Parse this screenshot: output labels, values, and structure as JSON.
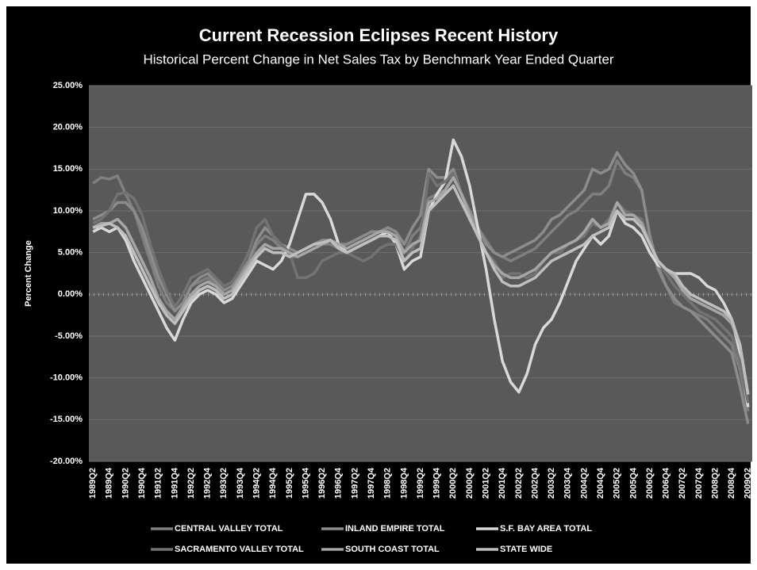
{
  "chart_data": {
    "type": "line",
    "title": "Current Recession Eclipses Recent History",
    "subtitle": "Historical Percent Change in Net Sales Tax by Benchmark Year Ended Quarter",
    "y_label": "Percent Change",
    "categories": [
      "1989Q2",
      null,
      "1989Q4",
      null,
      "1990Q2",
      null,
      "1990Q4",
      null,
      "1991Q2",
      null,
      "1991Q4",
      null,
      "1992Q2",
      null,
      "1992Q4",
      null,
      "1993Q2",
      null,
      "1993Q4",
      null,
      "1994Q2",
      null,
      "1994Q4",
      null,
      "1995Q2",
      null,
      "1995Q4",
      null,
      "1996Q2",
      null,
      "1996Q4",
      null,
      "1997Q2",
      null,
      "1997Q4",
      null,
      "1998Q2",
      null,
      "1998Q4",
      null,
      "1999Q2",
      null,
      "1999Q4",
      null,
      "2000Q2",
      null,
      "2000Q4",
      null,
      "2001Q2",
      null,
      "2001Q4",
      null,
      "2002Q2",
      null,
      "2002Q4",
      null,
      "2003Q2",
      null,
      "2003Q4",
      null,
      "2004Q2",
      null,
      "2004Q4",
      null,
      "2005Q2",
      null,
      "2005Q4",
      null,
      "2006Q2",
      null,
      "2006Q4",
      null,
      "2007Q2",
      null,
      "2007Q4",
      null,
      "2008Q2",
      null,
      "2008Q4",
      null,
      "2009Q2"
    ],
    "ylim": [
      -20,
      25
    ],
    "yticks": [
      {
        "value": -20,
        "label": "-20.00%"
      },
      {
        "value": -15,
        "label": "-15.00%"
      },
      {
        "value": -10,
        "label": "-10.00%"
      },
      {
        "value": -5,
        "label": "-5.00%"
      },
      {
        "value": 0,
        "label": "0.00%"
      },
      {
        "value": 5,
        "label": "5.00%"
      },
      {
        "value": 10,
        "label": "10.00%"
      },
      {
        "value": 15,
        "label": "15.00%"
      },
      {
        "value": 20,
        "label": "20.00%"
      },
      {
        "value": 25,
        "label": "25.00%"
      }
    ],
    "grid": true,
    "legend": "bottom",
    "series": [
      {
        "name": "CENTRAL VALLEY TOTAL",
        "color": "#7f7f7f",
        "values": [
          13.3,
          14,
          13.8,
          14.2,
          12,
          10,
          7,
          4,
          1,
          -1,
          -2,
          -1,
          1,
          1.5,
          2,
          1,
          0,
          0.5,
          2,
          4,
          6,
          7,
          6.5,
          5.5,
          4.5,
          4.5,
          5,
          5.5,
          6,
          6,
          5.5,
          5,
          5.5,
          6,
          6.5,
          7,
          7.5,
          7,
          5,
          7,
          8,
          11.5,
          12,
          12.5,
          14,
          12,
          10,
          8,
          6.5,
          5,
          4.5,
          4,
          4.5,
          5,
          5.5,
          6.5,
          7.5,
          8.5,
          9.5,
          10,
          11,
          12,
          12,
          13,
          16,
          14.5,
          14,
          12.5,
          7,
          3.5,
          1,
          -1,
          -1.5,
          -2,
          -2.5,
          -3,
          -4,
          -5,
          -6,
          -9,
          -14
        ]
      },
      {
        "name": "INLAND EMPIRE TOTAL",
        "color": "#8c8c8c",
        "values": [
          9,
          9.5,
          10,
          11,
          11,
          10,
          8,
          5,
          2,
          0,
          -2,
          -1,
          1,
          2,
          2.5,
          1.5,
          0.5,
          1,
          2.5,
          4,
          6.5,
          8,
          7,
          6,
          5.5,
          5,
          5.5,
          6,
          6.5,
          6.5,
          6,
          6,
          6.5,
          7,
          7.5,
          7.5,
          8,
          7.5,
          6,
          8,
          9.5,
          15,
          14,
          14,
          15,
          12,
          10,
          8,
          6,
          5,
          4.5,
          5,
          5.5,
          6,
          6.5,
          7.5,
          9,
          9.5,
          10.5,
          11.5,
          12.5,
          15,
          14.5,
          15,
          17,
          15.5,
          14.5,
          12.5,
          7,
          3,
          1,
          -0.5,
          -1.5,
          -2,
          -3,
          -4,
          -5,
          -6,
          -7,
          -11,
          -15.5
        ]
      },
      {
        "name": "S.F. BAY AREA TOTAL",
        "color": "#d9d9d9",
        "values": [
          7.5,
          8,
          7.5,
          8,
          6.5,
          4,
          2,
          0,
          -2,
          -4,
          -5.5,
          -3,
          -1,
          0,
          0.5,
          0,
          -1,
          -0.5,
          1,
          2.5,
          4,
          3.5,
          3,
          4,
          6,
          9,
          12,
          12,
          11,
          9,
          6,
          5,
          5.5,
          6,
          6.5,
          7,
          7.5,
          6,
          3,
          4,
          4.5,
          10,
          12,
          13.5,
          18.5,
          16.5,
          13,
          8,
          3,
          -3,
          -8,
          -10.5,
          -11.7,
          -9.5,
          -6,
          -4,
          -3,
          -1,
          1.5,
          4,
          5.5,
          7,
          6,
          7,
          10,
          8.5,
          8,
          7,
          5,
          3.5,
          3,
          2.5,
          2.5,
          2.5,
          2,
          1,
          0.5,
          -1,
          -3,
          -7,
          -13.5
        ]
      },
      {
        "name": "SACRAMENTO VALLEY TOTAL",
        "color": "#737373",
        "values": [
          8.5,
          9,
          10,
          12,
          12.2,
          11.5,
          9.5,
          6,
          3,
          0.5,
          -1.5,
          0,
          2,
          2.5,
          3,
          2,
          1,
          1.5,
          3,
          5,
          8,
          9,
          7,
          6,
          5,
          2,
          2,
          2.5,
          4,
          4.5,
          5,
          5,
          4.5,
          4,
          4.5,
          5.5,
          6,
          6,
          4,
          5.5,
          7,
          14.5,
          13,
          13.5,
          14.5,
          12,
          9,
          7,
          5,
          4,
          2,
          2.5,
          2.5,
          2,
          2.5,
          4,
          5,
          5,
          6,
          6.5,
          7,
          8.5,
          8,
          9,
          11,
          10,
          9.5,
          9,
          6,
          4,
          2.5,
          1,
          0,
          -1,
          -2,
          -2.5,
          -3,
          -4,
          -5,
          -8,
          -13
        ]
      },
      {
        "name": "SOUTH COAST TOTAL",
        "color": "#a6a6a6",
        "values": [
          8,
          8.5,
          8.5,
          9,
          8,
          6,
          4,
          2,
          -0.5,
          -2,
          -3,
          -1.5,
          0,
          1,
          1.5,
          1,
          0,
          0.5,
          2,
          3.5,
          5,
          6,
          5.5,
          5.5,
          5,
          4.5,
          5,
          5.5,
          6,
          6.5,
          6,
          5.5,
          6,
          6.5,
          7,
          7.5,
          7.5,
          7,
          5,
          6,
          6.5,
          11,
          11.5,
          12.5,
          14,
          12,
          9.5,
          7,
          5,
          3.5,
          2.5,
          2,
          2,
          2.5,
          3,
          4,
          5,
          5.5,
          6,
          6.5,
          7.5,
          9,
          8,
          8.5,
          11,
          9.5,
          9.5,
          8.5,
          6,
          4,
          3,
          2,
          0.5,
          -0.5,
          -1,
          -1.5,
          -2,
          -2.5,
          -3.5,
          -6,
          -12
        ]
      },
      {
        "name": "STATE WIDE",
        "color": "#bfbfbf",
        "values": [
          8,
          8.2,
          8.5,
          8,
          7,
          5,
          3,
          1,
          -1,
          -2.5,
          -3.5,
          -2,
          -0.5,
          0.5,
          1,
          0.5,
          -0.5,
          0,
          1.5,
          3,
          4.5,
          5.5,
          5,
          5,
          4.5,
          5,
          5.5,
          6,
          6.2,
          6.5,
          5.5,
          5,
          5.5,
          6,
          6.5,
          7,
          7,
          6.5,
          4,
          5,
          5.5,
          10,
          11,
          12,
          13,
          11,
          9,
          7,
          5,
          3,
          1.5,
          1,
          1,
          1.5,
          2,
          3,
          4,
          4.5,
          5,
          5.5,
          6,
          7,
          7.5,
          8,
          10,
          9,
          9,
          8,
          6,
          4,
          3,
          2.5,
          1,
          0,
          -0.5,
          -1,
          -1.5,
          -2,
          -3,
          -6,
          -12
        ]
      }
    ]
  }
}
